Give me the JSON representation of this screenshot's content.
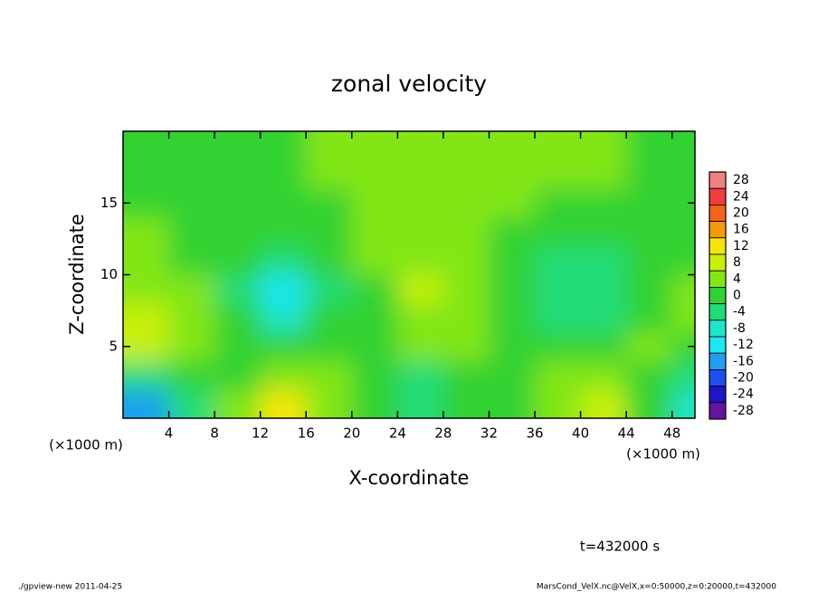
{
  "chart_data": {
    "type": "contour",
    "title": "zonal velocity",
    "x_label": "X-coordinate",
    "y_label": "Z-coordinate",
    "x_unit": "(×1000 m)",
    "y_unit": "(×1000 m)",
    "x": [
      2,
      6,
      10,
      14,
      18,
      22,
      26,
      30,
      34,
      38,
      42,
      46,
      50
    ],
    "y": [
      1,
      3,
      5,
      7,
      9,
      11,
      13,
      15,
      17,
      19
    ],
    "values": [
      [
        -16,
        -6,
        2,
        10,
        4,
        0,
        -4,
        -2,
        0,
        2,
        6,
        0,
        -8
      ],
      [
        -4,
        -2,
        0,
        4,
        2,
        -2,
        -4,
        -2,
        0,
        2,
        4,
        0,
        -4
      ],
      [
        6,
        2,
        0,
        -2,
        0,
        0,
        2,
        2,
        0,
        -2,
        0,
        2,
        0
      ],
      [
        6,
        2,
        -2,
        -8,
        -2,
        0,
        4,
        2,
        0,
        -4,
        -4,
        0,
        2
      ],
      [
        2,
        2,
        -4,
        -12,
        -4,
        0,
        6,
        2,
        0,
        -6,
        -6,
        -2,
        2
      ],
      [
        2,
        0,
        -2,
        -4,
        -2,
        2,
        4,
        2,
        0,
        -4,
        -6,
        -2,
        0
      ],
      [
        2,
        0,
        0,
        0,
        0,
        2,
        2,
        2,
        0,
        -2,
        -2,
        0,
        0
      ],
      [
        0,
        0,
        0,
        0,
        0,
        2,
        2,
        2,
        2,
        0,
        0,
        0,
        0
      ],
      [
        0,
        0,
        0,
        0,
        2,
        2,
        2,
        2,
        2,
        2,
        2,
        0,
        0
      ],
      [
        -2,
        -2,
        0,
        0,
        2,
        2,
        2,
        2,
        2,
        2,
        2,
        0,
        0
      ]
    ],
    "xlim": [
      0,
      50
    ],
    "ylim": [
      0,
      20
    ],
    "xticks": [
      4,
      8,
      12,
      16,
      20,
      24,
      28,
      32,
      36,
      40,
      44,
      48
    ],
    "yticks": [
      5,
      10,
      15
    ],
    "clim": [
      -30,
      30
    ],
    "levels": [
      28,
      24,
      20,
      16,
      12,
      8,
      4,
      0,
      -4,
      -8,
      -12,
      -16,
      -20,
      -24,
      -28
    ],
    "colors": [
      "#f28080",
      "#f03c3c",
      "#f26418",
      "#f59a0a",
      "#f5e60a",
      "#c8f00a",
      "#82e614",
      "#32d232",
      "#20dc78",
      "#1ee6c8",
      "#1ee6f5",
      "#1ea0f0",
      "#1e50f0",
      "#1e14c8",
      "#6414a0"
    ],
    "annotation": "t=432000 s",
    "footer_left": "./gpview-new  2011-04-25",
    "footer_right": "MarsCond_VelX.nc@VelX,x=0:50000,z=0:20000,t=432000"
  }
}
